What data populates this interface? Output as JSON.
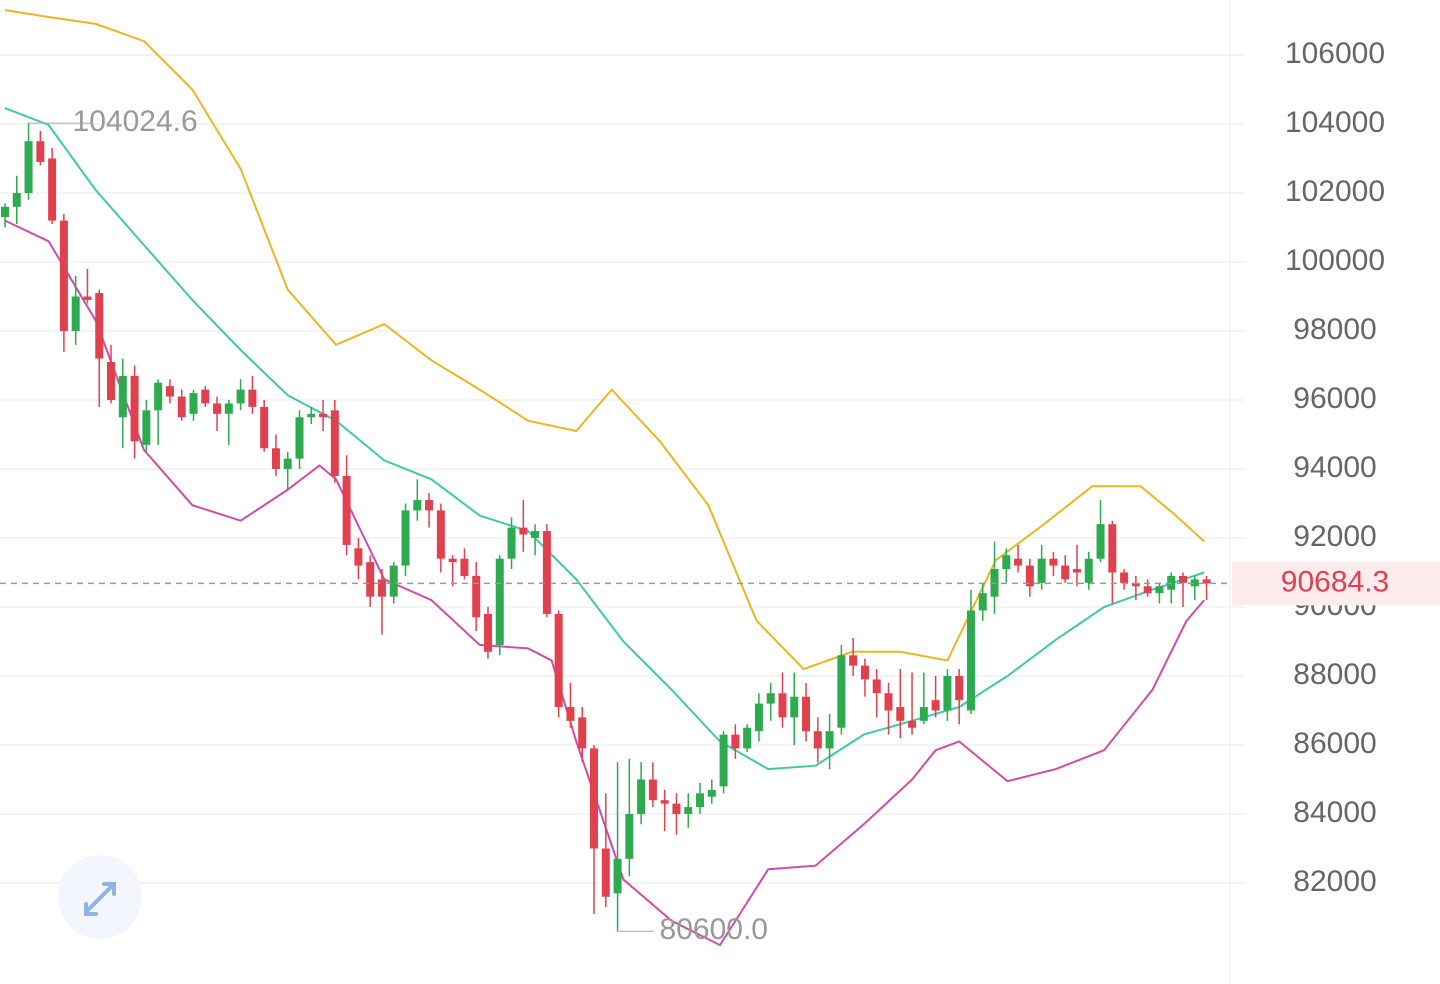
{
  "chart_data": {
    "type": "candlestick",
    "ylim": [
      79072,
      107594
    ],
    "yticks": [
      82000,
      84000,
      86000,
      88000,
      90000,
      92000,
      94000,
      96000,
      98000,
      100000,
      102000,
      104000,
      106000
    ],
    "grid": true,
    "up_color": "#2eaa4f",
    "down_color": "#e0414f",
    "candles": [
      [
        101300,
        101700,
        101000,
        101600
      ],
      [
        101600,
        102500,
        101100,
        102000
      ],
      [
        102000,
        104024.6,
        101800,
        103500
      ],
      [
        103500,
        103800,
        102800,
        102900
      ],
      [
        103000,
        103300,
        101100,
        101200
      ],
      [
        101200,
        101400,
        97400,
        98000
      ],
      [
        98000,
        99600,
        97600,
        99000
      ],
      [
        99000,
        99800,
        98800,
        98900
      ],
      [
        99100,
        99200,
        95800,
        97200
      ],
      [
        97100,
        97600,
        95900,
        96000
      ],
      [
        95500,
        97200,
        94600,
        96700
      ],
      [
        96700,
        97000,
        94300,
        94800
      ],
      [
        94700,
        96000,
        94500,
        95700
      ],
      [
        95700,
        96600,
        94700,
        96500
      ],
      [
        96400,
        96600,
        95900,
        96100
      ],
      [
        96100,
        96300,
        95400,
        95500
      ],
      [
        95600,
        96300,
        95400,
        96200
      ],
      [
        96300,
        96400,
        95800,
        95900
      ],
      [
        95900,
        96100,
        95100,
        95600
      ],
      [
        95600,
        96000,
        94700,
        95900
      ],
      [
        95900,
        96600,
        95700,
        96300
      ],
      [
        96300,
        96700,
        95600,
        95800
      ],
      [
        95800,
        96000,
        94500,
        94600
      ],
      [
        94600,
        95000,
        93800,
        94000
      ],
      [
        94000,
        94500,
        93400,
        94300
      ],
      [
        94300,
        95700,
        94000,
        95500
      ],
      [
        95500,
        95800,
        95300,
        95600
      ],
      [
        95600,
        96000,
        95100,
        95500
      ],
      [
        95700,
        96000,
        93600,
        93800
      ],
      [
        93800,
        94400,
        91500,
        91800
      ],
      [
        91700,
        92000,
        90800,
        91200
      ],
      [
        91300,
        91500,
        90000,
        90300
      ],
      [
        90800,
        91100,
        89200,
        90300
      ],
      [
        90300,
        91300,
        90100,
        91200
      ],
      [
        91200,
        93000,
        90900,
        92800
      ],
      [
        92800,
        93700,
        92500,
        93100
      ],
      [
        93100,
        93300,
        92300,
        92800
      ],
      [
        92800,
        93000,
        91000,
        91400
      ],
      [
        91400,
        91500,
        90600,
        91300
      ],
      [
        91400,
        91700,
        90800,
        90900
      ],
      [
        90900,
        91300,
        89300,
        89700
      ],
      [
        89800,
        90000,
        88500,
        88700
      ],
      [
        88900,
        91500,
        88600,
        91400
      ],
      [
        91400,
        92600,
        91100,
        92300
      ],
      [
        92300,
        93100,
        91600,
        92100
      ],
      [
        92000,
        92400,
        91500,
        92200
      ],
      [
        92200,
        92400,
        89700,
        89800
      ],
      [
        89800,
        89900,
        86800,
        87100
      ],
      [
        87100,
        87800,
        86500,
        86700
      ],
      [
        86800,
        87100,
        85500,
        85900
      ],
      [
        85900,
        86000,
        81100,
        83000
      ],
      [
        83000,
        84600,
        81300,
        81600
      ],
      [
        81700,
        85500,
        80600,
        82700
      ],
      [
        82700,
        85600,
        82200,
        84000
      ],
      [
        84000,
        85500,
        83700,
        85000
      ],
      [
        85000,
        85500,
        84200,
        84400
      ],
      [
        84400,
        84700,
        83500,
        84300
      ],
      [
        84300,
        84600,
        83400,
        84000
      ],
      [
        84000,
        84600,
        83600,
        84200
      ],
      [
        84200,
        84900,
        84000,
        84600
      ],
      [
        84500,
        85000,
        84300,
        84700
      ],
      [
        84800,
        86400,
        84600,
        86300
      ],
      [
        86300,
        86600,
        85600,
        85900
      ],
      [
        85900,
        86600,
        85800,
        86500
      ],
      [
        86400,
        87500,
        86100,
        87200
      ],
      [
        87200,
        87800,
        86700,
        87500
      ],
      [
        87500,
        88100,
        86500,
        86800
      ],
      [
        86800,
        88100,
        86000,
        87400
      ],
      [
        87400,
        87800,
        86100,
        86400
      ],
      [
        86400,
        86800,
        85500,
        85900
      ],
      [
        85900,
        86900,
        85300,
        86400
      ],
      [
        86500,
        88900,
        86300,
        88600
      ],
      [
        88600,
        89100,
        88000,
        88300
      ],
      [
        88300,
        88500,
        87400,
        87900
      ],
      [
        87900,
        88200,
        86800,
        87500
      ],
      [
        87500,
        87800,
        86300,
        87000
      ],
      [
        87100,
        88200,
        86200,
        86700
      ],
      [
        86700,
        88100,
        86300,
        86500
      ],
      [
        86700,
        88100,
        86600,
        87100
      ],
      [
        87300,
        88000,
        86800,
        87000
      ],
      [
        87000,
        88200,
        86700,
        88000
      ],
      [
        88000,
        88200,
        86600,
        87300
      ],
      [
        87000,
        90500,
        86900,
        89900
      ],
      [
        89900,
        90700,
        89600,
        90400
      ],
      [
        90300,
        91900,
        89800,
        91100
      ],
      [
        91100,
        91700,
        90700,
        91500
      ],
      [
        91400,
        91800,
        91000,
        91200
      ],
      [
        91200,
        91400,
        90300,
        90600
      ],
      [
        90700,
        91800,
        90500,
        91400
      ],
      [
        91400,
        91600,
        90900,
        91200
      ],
      [
        91200,
        91500,
        90700,
        90800
      ],
      [
        91100,
        91800,
        90600,
        91000
      ],
      [
        90700,
        91600,
        90500,
        91400
      ],
      [
        91400,
        93100,
        91300,
        92400
      ],
      [
        92400,
        92500,
        90100,
        91000
      ],
      [
        91000,
        91100,
        90500,
        90700
      ],
      [
        90700,
        90900,
        90200,
        90600
      ],
      [
        90600,
        90800,
        90300,
        90400
      ],
      [
        90400,
        90700,
        90100,
        90600
      ],
      [
        90500,
        91000,
        90100,
        90900
      ],
      [
        90900,
        91000,
        90000,
        90700
      ],
      [
        90600,
        90900,
        90200,
        90800
      ],
      [
        90800,
        90900,
        90200,
        90684.3
      ]
    ],
    "bands": [
      {
        "color": "#e8b820",
        "x": [
          0,
          3.7,
          7.7,
          11.8,
          15.9,
          20,
          24,
          28.1,
          32.2,
          36.2,
          40.3,
          44.4,
          48.5,
          51.5,
          55.6,
          59.7,
          63.8,
          67.8,
          71.9,
          76,
          80,
          84.1,
          88.2,
          92.3,
          96.4,
          99.4,
          101.8
        ],
        "values": [
          107300,
          107100,
          106900,
          106400,
          105000,
          102700,
          99200,
          97600,
          98200,
          97150,
          96300,
          95400,
          95100,
          96300,
          94800,
          92950,
          89600,
          88200,
          88700,
          88700,
          88450,
          91350,
          92400,
          93500,
          93500,
          92650,
          91900
        ]
      },
      {
        "color": "#3ec9a7",
        "x": [
          0,
          3.7,
          7.7,
          11.8,
          15.9,
          20,
          24,
          28.1,
          32.2,
          36.2,
          40.3,
          44.4,
          48.5,
          52.5,
          56.6,
          60.7,
          64.8,
          68.8,
          72.9,
          77,
          81,
          85.1,
          89.2,
          93.3,
          97.4,
          101.8
        ],
        "values": [
          104460,
          103970,
          102085,
          100490,
          98900,
          97450,
          96140,
          95400,
          94250,
          93700,
          92650,
          92200,
          90800,
          89000,
          87600,
          86100,
          85300,
          85400,
          86300,
          86700,
          87100,
          88000,
          89050,
          90000,
          90500,
          91000
        ]
      },
      {
        "color": "#d44aa8",
        "x": [
          0,
          3.7,
          7.7,
          11.8,
          15.9,
          20,
          24,
          26.7,
          28.1,
          32.2,
          36.2,
          40.3,
          44.4,
          46.4,
          48.5,
          52.5,
          56.6,
          60.7,
          64.8,
          68.8,
          72.9,
          77,
          79,
          81,
          85.1,
          89.2,
          93.3,
          97.4,
          100.3,
          101.8
        ],
        "values": [
          101200,
          100600,
          98300,
          94550,
          92950,
          92500,
          93400,
          94100,
          93700,
          90800,
          90200,
          88900,
          88800,
          88450,
          86100,
          82100,
          80900,
          80200,
          82400,
          82500,
          83700,
          85000,
          85850,
          86100,
          84950,
          85300,
          85850,
          87600,
          89600,
          90200
        ]
      }
    ],
    "max_annotation": 104024.6,
    "min_annotation": {
      "value": 80600,
      "label": "80600.0"
    },
    "last_price": 90684.3
  }
}
